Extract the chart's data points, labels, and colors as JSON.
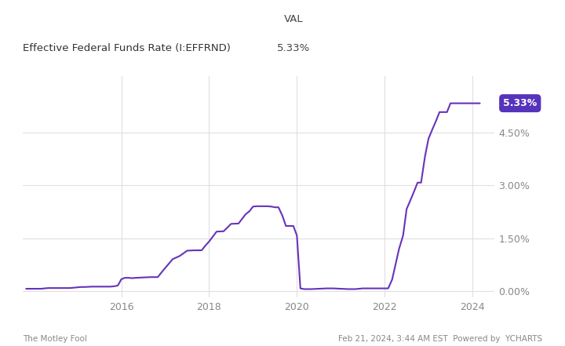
{
  "title_col1": "Effective Federal Funds Rate (I:EFFRND)",
  "title_col2_line1": "VAL",
  "title_col2_line2": "5.33%",
  "val_label": "5.33%",
  "line_color": "#6633bb",
  "label_box_color": "#5533bb",
  "background_color": "#ffffff",
  "grid_color": "#e0e0e0",
  "ytick_values": [
    0.0,
    1.5,
    3.0,
    4.5
  ],
  "ylim": [
    -0.18,
    6.1
  ],
  "xlim": [
    2013.75,
    2024.5
  ],
  "xtick_values": [
    2016,
    2018,
    2020,
    2022,
    2024
  ],
  "footer_left": "The Motley Fool",
  "footer_right": "Feb 21, 2024, 3:44 AM EST  Powered by  YCHARTS",
  "data": [
    [
      2013.83,
      0.07
    ],
    [
      2014.0,
      0.07
    ],
    [
      2014.17,
      0.07
    ],
    [
      2014.33,
      0.09
    ],
    [
      2014.5,
      0.09
    ],
    [
      2014.67,
      0.09
    ],
    [
      2014.83,
      0.09
    ],
    [
      2015.0,
      0.11
    ],
    [
      2015.08,
      0.12
    ],
    [
      2015.17,
      0.12
    ],
    [
      2015.33,
      0.13
    ],
    [
      2015.5,
      0.13
    ],
    [
      2015.67,
      0.13
    ],
    [
      2015.75,
      0.13
    ],
    [
      2015.83,
      0.14
    ],
    [
      2015.92,
      0.16
    ],
    [
      2016.0,
      0.34
    ],
    [
      2016.08,
      0.38
    ],
    [
      2016.17,
      0.38
    ],
    [
      2016.25,
      0.37
    ],
    [
      2016.33,
      0.38
    ],
    [
      2016.5,
      0.39
    ],
    [
      2016.67,
      0.4
    ],
    [
      2016.75,
      0.4
    ],
    [
      2016.83,
      0.4
    ],
    [
      2016.92,
      0.54
    ],
    [
      2017.0,
      0.66
    ],
    [
      2017.17,
      0.91
    ],
    [
      2017.33,
      1.0
    ],
    [
      2017.5,
      1.15
    ],
    [
      2017.67,
      1.16
    ],
    [
      2017.83,
      1.16
    ],
    [
      2017.92,
      1.3
    ],
    [
      2018.0,
      1.41
    ],
    [
      2018.17,
      1.69
    ],
    [
      2018.33,
      1.7
    ],
    [
      2018.5,
      1.91
    ],
    [
      2018.67,
      1.92
    ],
    [
      2018.83,
      2.18
    ],
    [
      2018.92,
      2.27
    ],
    [
      2019.0,
      2.4
    ],
    [
      2019.08,
      2.41
    ],
    [
      2019.17,
      2.41
    ],
    [
      2019.33,
      2.41
    ],
    [
      2019.42,
      2.4
    ],
    [
      2019.5,
      2.38
    ],
    [
      2019.58,
      2.38
    ],
    [
      2019.67,
      2.14
    ],
    [
      2019.75,
      1.85
    ],
    [
      2019.83,
      1.85
    ],
    [
      2019.92,
      1.85
    ],
    [
      2020.0,
      1.58
    ],
    [
      2020.08,
      0.08
    ],
    [
      2020.17,
      0.06
    ],
    [
      2020.25,
      0.06
    ],
    [
      2020.33,
      0.06
    ],
    [
      2020.5,
      0.07
    ],
    [
      2020.67,
      0.08
    ],
    [
      2020.83,
      0.08
    ],
    [
      2021.0,
      0.07
    ],
    [
      2021.17,
      0.06
    ],
    [
      2021.33,
      0.06
    ],
    [
      2021.5,
      0.08
    ],
    [
      2021.67,
      0.08
    ],
    [
      2021.83,
      0.08
    ],
    [
      2022.0,
      0.08
    ],
    [
      2022.08,
      0.08
    ],
    [
      2022.17,
      0.33
    ],
    [
      2022.25,
      0.77
    ],
    [
      2022.33,
      1.21
    ],
    [
      2022.42,
      1.58
    ],
    [
      2022.5,
      2.33
    ],
    [
      2022.58,
      2.56
    ],
    [
      2022.67,
      2.83
    ],
    [
      2022.75,
      3.08
    ],
    [
      2022.83,
      3.08
    ],
    [
      2022.92,
      3.83
    ],
    [
      2023.0,
      4.33
    ],
    [
      2023.08,
      4.57
    ],
    [
      2023.17,
      4.83
    ],
    [
      2023.25,
      5.08
    ],
    [
      2023.33,
      5.08
    ],
    [
      2023.42,
      5.08
    ],
    [
      2023.5,
      5.33
    ],
    [
      2023.67,
      5.33
    ],
    [
      2023.83,
      5.33
    ],
    [
      2024.0,
      5.33
    ],
    [
      2024.17,
      5.33
    ]
  ]
}
